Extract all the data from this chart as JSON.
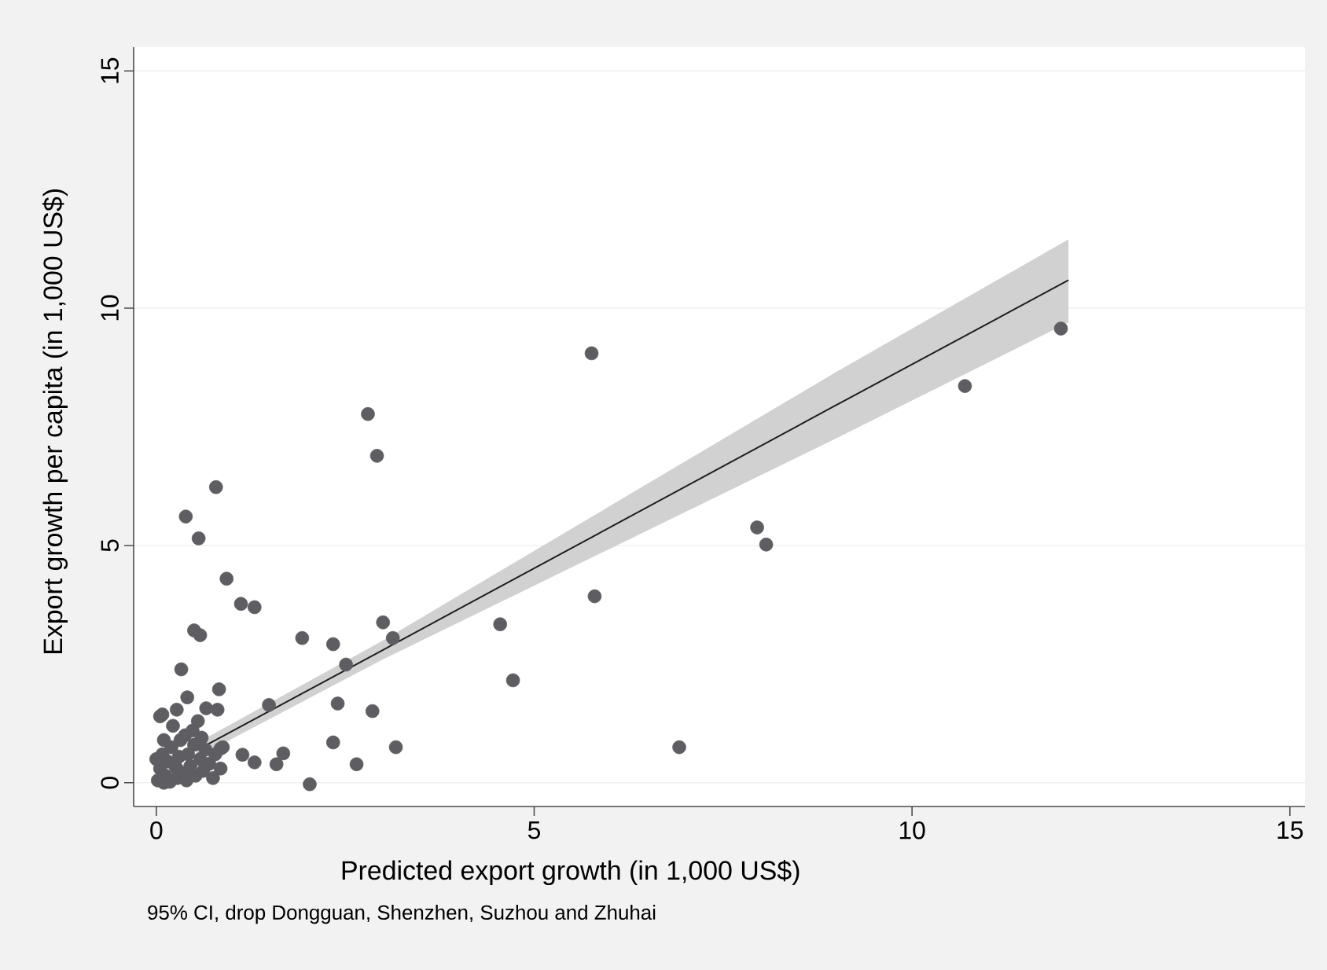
{
  "chart_data": {
    "type": "scatter",
    "xlabel": "Predicted export growth (in 1,000 US$)",
    "ylabel": "Export growth per capita (in 1,000 US$)",
    "annotations": [
      "95% CI, drop Dongguan, Shenzhen, Suzhou and Zhuhai"
    ],
    "xlim": [
      -0.3,
      15.2
    ],
    "ylim": [
      -0.5,
      15.5
    ],
    "xticks": [
      0,
      5,
      10,
      15
    ],
    "yticks": [
      0,
      5,
      10,
      15
    ],
    "grid": "y",
    "marker": "circle",
    "series": [
      {
        "color": "#5e5e62",
        "x": [
          0.02,
          0.05,
          0.08,
          0.1,
          0.12,
          0.15,
          0.18,
          0.2,
          0.22,
          0.25,
          0.28,
          0.3,
          0.32,
          0.35,
          0.38,
          0.4,
          0.42,
          0.45,
          0.48,
          0.5,
          0.52,
          0.55,
          0.58,
          0.6,
          0.62,
          0.65,
          0.7,
          0.75,
          0.78,
          0.85,
          0.88,
          0.05,
          0.0,
          0.1,
          0.27,
          0.79,
          0.39,
          0.56,
          0.93,
          1.12,
          1.3,
          0.5,
          0.58,
          0.33,
          0.41,
          0.83,
          0.08,
          0.27,
          0.66,
          0.81,
          1.49,
          1.93,
          2.34,
          2.51,
          3.0,
          3.13,
          2.4,
          2.86,
          2.34,
          2.65,
          3.17,
          2.03,
          1.14,
          1.3,
          1.68,
          1.59,
          0.85,
          2.8,
          2.92,
          5.76,
          10.7,
          11.97,
          7.95,
          8.07,
          5.8,
          4.55,
          4.72,
          6.92
        ],
        "values": [
          0.05,
          0.3,
          0.6,
          0.9,
          0.15,
          0.45,
          0.02,
          0.75,
          1.2,
          0.35,
          0.1,
          0.55,
          0.9,
          0.2,
          1.0,
          0.05,
          0.6,
          0.35,
          1.1,
          0.8,
          0.15,
          1.3,
          0.5,
          0.95,
          0.25,
          0.7,
          0.4,
          0.1,
          0.6,
          0.3,
          0.75,
          1.4,
          0.5,
          0.0,
          0.3,
          6.23,
          5.61,
          5.15,
          4.3,
          3.77,
          3.7,
          3.21,
          3.11,
          2.39,
          1.8,
          1.97,
          1.44,
          1.54,
          1.57,
          1.54,
          1.64,
          3.05,
          2.92,
          2.49,
          3.38,
          3.05,
          1.67,
          1.51,
          0.85,
          0.39,
          0.75,
          -0.03,
          0.59,
          0.43,
          0.62,
          0.39,
          0.72,
          7.77,
          6.89,
          9.05,
          8.36,
          9.57,
          5.38,
          5.02,
          3.93,
          3.34,
          2.16,
          0.75
        ]
      },
      {
        "type": "line",
        "marker": "none",
        "color": "#1e1e1e",
        "x": [
          0.54,
          3,
          6,
          9,
          12.07
        ],
        "values": [
          0.69,
          2.8,
          5.38,
          7.96,
          10.59
        ],
        "lower": [
          0.54,
          2.6,
          4.93,
          7.26,
          9.7
        ],
        "upper": [
          0.84,
          3.0,
          5.83,
          8.66,
          11.45
        ]
      }
    ]
  }
}
